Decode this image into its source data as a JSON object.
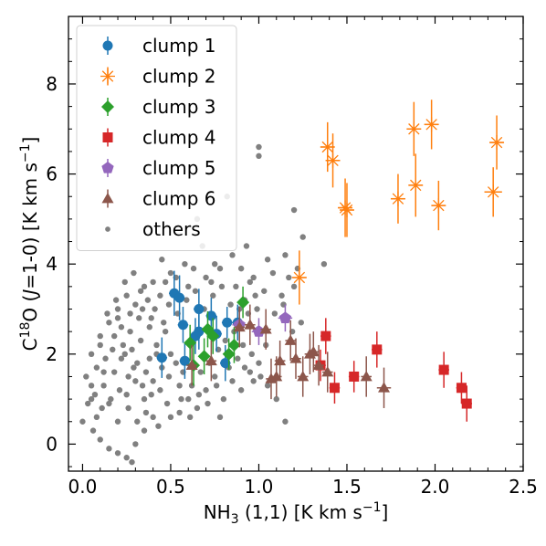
{
  "chart_data": {
    "type": "scatter",
    "xlabel": "NH3 (1,1) [K  km s−1]",
    "ylabel": "C18O (J=1-0) [K  km s−1]",
    "xlim": [
      -0.08,
      2.5
    ],
    "ylim": [
      -0.6,
      9.5
    ],
    "x_ticks": [
      "0.0",
      "0.5",
      "1.0",
      "1.5",
      "2.0",
      "2.5"
    ],
    "y_ticks": [
      "0",
      "2",
      "4",
      "6",
      "8"
    ],
    "x_tick_values": [
      0.0,
      0.5,
      1.0,
      1.5,
      2.0,
      2.5
    ],
    "y_tick_values": [
      0,
      2,
      4,
      6,
      8
    ],
    "legend_position": "top-left",
    "series": [
      {
        "name": "clump 1",
        "color": "#1f77b4",
        "marker": "circle",
        "points": [
          [
            0.45,
            1.92
          ],
          [
            0.52,
            3.35
          ],
          [
            0.55,
            3.25
          ],
          [
            0.57,
            2.65
          ],
          [
            0.58,
            1.85
          ],
          [
            0.64,
            2.4
          ],
          [
            0.66,
            3.0
          ],
          [
            0.66,
            2.5
          ],
          [
            0.73,
            2.85
          ],
          [
            0.76,
            2.45
          ],
          [
            0.81,
            1.8
          ],
          [
            0.82,
            2.7
          ],
          [
            0.88,
            2.7
          ]
        ],
        "xerr": [
          0.03,
          0.03,
          0.03,
          0.03,
          0.03,
          0.03,
          0.03,
          0.03,
          0.03,
          0.03,
          0.03,
          0.03,
          0.03
        ],
        "yerr": [
          0.45,
          0.5,
          0.5,
          0.4,
          0.4,
          0.4,
          0.45,
          0.4,
          0.4,
          0.4,
          0.4,
          0.35,
          0.4
        ]
      },
      {
        "name": "clump 2",
        "color": "#ff7f0e",
        "marker": "star",
        "points": [
          [
            1.23,
            3.7
          ],
          [
            1.39,
            6.6
          ],
          [
            1.42,
            6.3
          ],
          [
            1.49,
            5.25
          ],
          [
            1.5,
            5.2
          ],
          [
            1.79,
            5.45
          ],
          [
            1.88,
            7.0
          ],
          [
            1.89,
            5.75
          ],
          [
            1.98,
            7.1
          ],
          [
            2.02,
            5.3
          ],
          [
            2.33,
            5.6
          ],
          [
            2.35,
            6.7
          ]
        ],
        "xerr": [
          0.04,
          0.04,
          0.04,
          0.04,
          0.04,
          0.04,
          0.04,
          0.04,
          0.04,
          0.04,
          0.05,
          0.04
        ],
        "yerr": [
          0.6,
          0.55,
          0.6,
          0.65,
          0.6,
          0.55,
          0.6,
          0.7,
          0.55,
          0.55,
          0.55,
          0.6
        ]
      },
      {
        "name": "clump 3",
        "color": "#2ca02c",
        "marker": "diamond",
        "points": [
          [
            0.61,
            2.25
          ],
          [
            0.63,
            1.75
          ],
          [
            0.69,
            1.95
          ],
          [
            0.71,
            2.55
          ],
          [
            0.74,
            2.4
          ],
          [
            0.83,
            2.0
          ],
          [
            0.86,
            2.2
          ],
          [
            0.91,
            3.15
          ]
        ],
        "xerr": [
          0.03,
          0.03,
          0.03,
          0.03,
          0.03,
          0.03,
          0.03,
          0.03
        ],
        "yerr": [
          0.4,
          0.45,
          0.4,
          0.4,
          0.4,
          0.35,
          0.4,
          0.35
        ]
      },
      {
        "name": "clump 4",
        "color": "#d62728",
        "marker": "square",
        "points": [
          [
            1.35,
            1.75
          ],
          [
            1.38,
            2.4
          ],
          [
            1.43,
            1.25
          ],
          [
            1.54,
            1.5
          ],
          [
            1.67,
            2.1
          ],
          [
            2.05,
            1.65
          ],
          [
            2.15,
            1.25
          ],
          [
            2.18,
            0.9
          ]
        ],
        "xerr": [
          0.03,
          0.03,
          0.03,
          0.03,
          0.03,
          0.03,
          0.03,
          0.03
        ],
        "yerr": [
          0.35,
          0.4,
          0.35,
          0.35,
          0.4,
          0.4,
          0.35,
          0.4
        ]
      },
      {
        "name": "clump 5",
        "color": "#9467bd",
        "marker": "pentagon",
        "points": [
          [
            0.89,
            2.65
          ],
          [
            1.0,
            2.5
          ],
          [
            1.15,
            2.8
          ]
        ],
        "xerr": [
          0.04,
          0.04,
          0.04
        ],
        "yerr": [
          0.3,
          0.3,
          0.3
        ]
      },
      {
        "name": "clump 6",
        "color": "#8c564b",
        "marker": "triangle",
        "points": [
          [
            0.62,
            1.75
          ],
          [
            0.73,
            1.85
          ],
          [
            0.89,
            2.6
          ],
          [
            0.95,
            2.65
          ],
          [
            1.04,
            2.55
          ],
          [
            1.07,
            1.45
          ],
          [
            1.1,
            1.5
          ],
          [
            1.12,
            1.85
          ],
          [
            1.18,
            2.3
          ],
          [
            1.21,
            1.9
          ],
          [
            1.25,
            1.5
          ],
          [
            1.29,
            2.0
          ],
          [
            1.31,
            2.05
          ],
          [
            1.34,
            1.75
          ],
          [
            1.39,
            1.6
          ],
          [
            1.61,
            1.5
          ],
          [
            1.71,
            1.25
          ]
        ],
        "xerr": [
          0.03,
          0.03,
          0.03,
          0.03,
          0.03,
          0.03,
          0.03,
          0.03,
          0.03,
          0.03,
          0.03,
          0.03,
          0.03,
          0.03,
          0.03,
          0.03,
          0.04
        ],
        "yerr": [
          0.45,
          0.45,
          0.45,
          0.45,
          0.45,
          0.45,
          0.45,
          0.45,
          0.45,
          0.45,
          0.45,
          0.45,
          0.45,
          0.45,
          0.45,
          0.45,
          0.45
        ]
      },
      {
        "name": "others",
        "color": "#808080",
        "marker": "dot",
        "points": [
          [
            1.0,
            6.6
          ],
          [
            1.0,
            6.4
          ],
          [
            1.2,
            5.2
          ],
          [
            0.82,
            5.5
          ],
          [
            0.65,
            5.0
          ],
          [
            1.25,
            4.6
          ],
          [
            1.37,
            4.0
          ],
          [
            1.05,
            4.1
          ],
          [
            0.9,
            3.9
          ],
          [
            0.75,
            4.0
          ],
          [
            0.7,
            3.7
          ],
          [
            0.95,
            3.6
          ],
          [
            1.2,
            3.5
          ],
          [
            1.15,
            4.2
          ],
          [
            0.6,
            3.5
          ],
          [
            0.5,
            3.8
          ],
          [
            0.45,
            4.1
          ],
          [
            0.4,
            3.6
          ],
          [
            0.35,
            3.5
          ],
          [
            0.3,
            3.1
          ],
          [
            0.25,
            3.3
          ],
          [
            0.2,
            3.0
          ],
          [
            0.15,
            2.7
          ],
          [
            0.1,
            2.4
          ],
          [
            0.05,
            2.0
          ],
          [
            0.02,
            1.5
          ],
          [
            0.05,
            1.0
          ],
          [
            0.08,
            0.6
          ],
          [
            0.0,
            0.5
          ],
          [
            0.1,
            0.1
          ],
          [
            0.15,
            -0.1
          ],
          [
            0.2,
            -0.2
          ],
          [
            0.25,
            -0.3
          ],
          [
            0.28,
            -0.4
          ],
          [
            0.3,
            0.0
          ],
          [
            0.35,
            0.3
          ],
          [
            0.4,
            0.6
          ],
          [
            0.2,
            0.5
          ],
          [
            0.15,
            0.9
          ],
          [
            0.12,
            1.3
          ],
          [
            0.18,
            1.6
          ],
          [
            0.22,
            1.9
          ],
          [
            0.28,
            2.1
          ],
          [
            0.33,
            2.3
          ],
          [
            0.38,
            2.6
          ],
          [
            0.42,
            2.2
          ],
          [
            0.47,
            2.5
          ],
          [
            0.3,
            1.4
          ],
          [
            0.25,
            1.1
          ],
          [
            0.35,
            1.0
          ],
          [
            0.4,
            1.4
          ],
          [
            0.45,
            1.7
          ],
          [
            0.5,
            2.0
          ],
          [
            0.55,
            1.3
          ],
          [
            0.6,
            1.0
          ],
          [
            0.65,
            0.8
          ],
          [
            0.7,
            1.2
          ],
          [
            0.75,
            1.5
          ],
          [
            0.8,
            1.0
          ],
          [
            0.85,
            1.4
          ],
          [
            0.9,
            1.2
          ],
          [
            0.95,
            1.6
          ],
          [
            1.0,
            1.8
          ],
          [
            1.05,
            1.3
          ],
          [
            1.1,
            1.0
          ],
          [
            1.15,
            0.5
          ],
          [
            0.78,
            0.6
          ],
          [
            0.55,
            0.7
          ],
          [
            0.48,
            0.9
          ],
          [
            0.38,
            1.9
          ],
          [
            0.32,
            2.8
          ],
          [
            0.27,
            2.5
          ],
          [
            0.23,
            2.2
          ],
          [
            0.18,
            2.4
          ],
          [
            0.13,
            1.9
          ],
          [
            0.08,
            1.7
          ],
          [
            0.05,
            1.3
          ],
          [
            0.1,
            2.2
          ],
          [
            0.14,
            2.9
          ],
          [
            0.19,
            3.2
          ],
          [
            0.24,
            3.6
          ],
          [
            0.29,
            3.8
          ],
          [
            0.34,
            3.0
          ],
          [
            0.39,
            2.8
          ],
          [
            0.44,
            3.3
          ],
          [
            0.49,
            3.1
          ],
          [
            0.54,
            2.9
          ],
          [
            0.59,
            3.2
          ],
          [
            0.64,
            3.4
          ],
          [
            0.69,
            3.0
          ],
          [
            0.74,
            3.3
          ],
          [
            0.79,
            3.5
          ],
          [
            0.84,
            3.1
          ],
          [
            0.89,
            3.0
          ],
          [
            0.94,
            2.9
          ],
          [
            0.99,
            3.0
          ],
          [
            1.04,
            2.2
          ],
          [
            1.09,
            2.9
          ],
          [
            1.14,
            3.1
          ],
          [
            1.19,
            2.5
          ],
          [
            1.24,
            2.7
          ],
          [
            0.98,
            3.3
          ],
          [
            0.93,
            4.4
          ],
          [
            0.85,
            4.2
          ],
          [
            0.68,
            4.4
          ],
          [
            0.58,
            4.0
          ],
          [
            0.42,
            2.0
          ],
          [
            0.36,
            1.6
          ],
          [
            0.31,
            1.8
          ],
          [
            0.26,
            1.5
          ],
          [
            0.21,
            1.2
          ],
          [
            0.16,
            1.0
          ],
          [
            0.11,
            0.8
          ],
          [
            0.06,
            0.3
          ],
          [
            0.2,
            2.8
          ],
          [
            0.24,
            2.0
          ],
          [
            0.29,
            1.7
          ],
          [
            0.34,
            1.3
          ],
          [
            0.39,
            1.1
          ],
          [
            0.44,
            1.2
          ],
          [
            0.49,
            1.5
          ],
          [
            0.53,
            1.8
          ],
          [
            0.57,
            1.6
          ],
          [
            0.62,
            1.3
          ],
          [
            0.67,
            1.6
          ],
          [
            0.72,
            1.8
          ],
          [
            0.77,
            2.1
          ],
          [
            0.81,
            2.3
          ],
          [
            0.86,
            2.5
          ],
          [
            0.91,
            2.2
          ],
          [
            0.96,
            2.0
          ],
          [
            1.01,
            1.5
          ],
          [
            0.46,
            2.7
          ],
          [
            0.41,
            3.0
          ],
          [
            0.37,
            3.2
          ],
          [
            0.33,
            3.4
          ],
          [
            0.27,
            2.9
          ],
          [
            0.22,
            2.6
          ],
          [
            0.17,
            2.1
          ],
          [
            0.12,
            1.6
          ],
          [
            0.07,
            1.1
          ],
          [
            0.03,
            0.9
          ],
          [
            0.26,
            0.8
          ],
          [
            0.31,
            0.5
          ],
          [
            0.36,
            0.7
          ],
          [
            0.43,
            0.4
          ],
          [
            0.5,
            0.6
          ],
          [
            0.56,
            1.0
          ],
          [
            0.61,
            0.6
          ],
          [
            0.66,
            1.1
          ],
          [
            0.71,
            0.9
          ],
          [
            0.76,
            1.3
          ],
          [
            0.83,
            1.7
          ],
          [
            0.88,
            1.9
          ],
          [
            0.92,
            1.7
          ],
          [
            0.97,
            1.4
          ],
          [
            0.52,
            3.4
          ],
          [
            0.47,
            3.6
          ],
          [
            0.53,
            3.7
          ],
          [
            0.63,
            3.9
          ],
          [
            0.73,
            3.6
          ],
          [
            0.78,
            3.9
          ],
          [
            0.87,
            3.5
          ],
          [
            0.92,
            3.2
          ],
          [
            0.97,
            3.7
          ],
          [
            1.03,
            3.4
          ],
          [
            1.08,
            3.8
          ],
          [
            1.13,
            3.3
          ],
          [
            1.17,
            3.7
          ],
          [
            1.22,
            3.9
          ]
        ]
      }
    ]
  }
}
